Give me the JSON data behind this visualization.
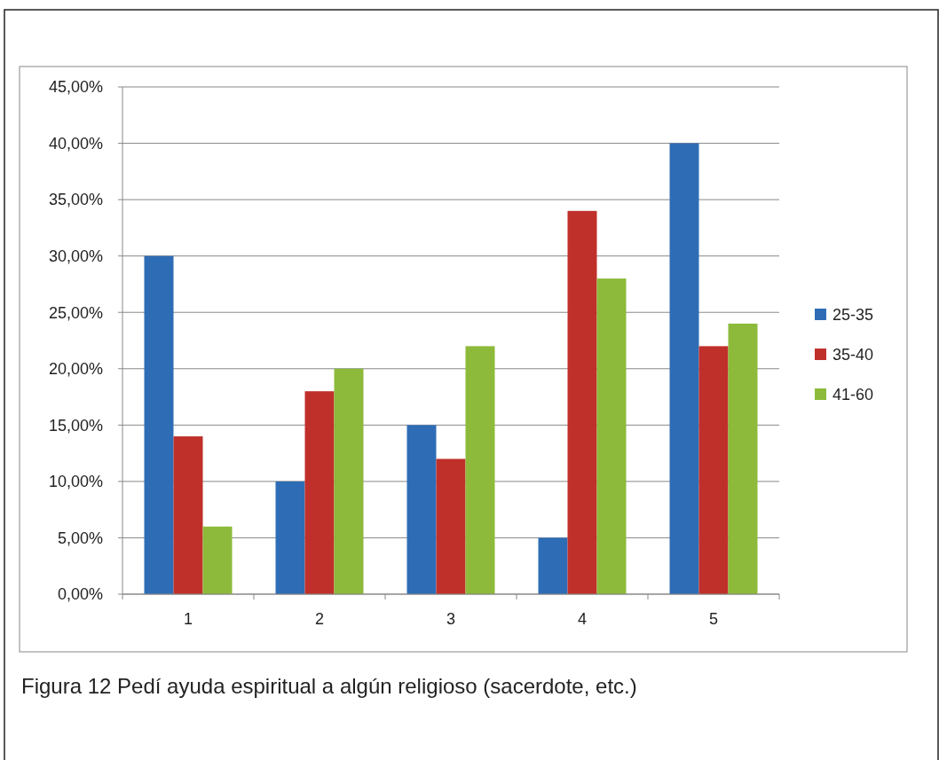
{
  "chart_data": {
    "type": "bar",
    "categories": [
      "1",
      "2",
      "3",
      "4",
      "5"
    ],
    "series": [
      {
        "name": "25-35",
        "color": "#2e6db5",
        "values": [
          30,
          10,
          15,
          5,
          40
        ]
      },
      {
        "name": "35-40",
        "color": "#c0302a",
        "values": [
          14,
          18,
          12,
          34,
          22
        ]
      },
      {
        "name": "41-60",
        "color": "#8dba3a",
        "values": [
          6,
          20,
          22,
          28,
          24
        ]
      }
    ],
    "ylim": [
      0,
      45
    ],
    "yticks": [
      {
        "value": 0,
        "label": "0,00%"
      },
      {
        "value": 5,
        "label": "5,00%"
      },
      {
        "value": 10,
        "label": "10,00%"
      },
      {
        "value": 15,
        "label": "15,00%"
      },
      {
        "value": 20,
        "label": "20,00%"
      },
      {
        "value": 25,
        "label": "25,00%"
      },
      {
        "value": 30,
        "label": "30,00%"
      },
      {
        "value": 35,
        "label": "35,00%"
      },
      {
        "value": 40,
        "label": "40,00%"
      },
      {
        "value": 45,
        "label": "45,00%"
      }
    ],
    "grid": "y",
    "legend": "right",
    "annotations": [
      "Figura 12 Pedí ayuda espiritual a algún religioso (sacerdote, etc.)"
    ]
  }
}
